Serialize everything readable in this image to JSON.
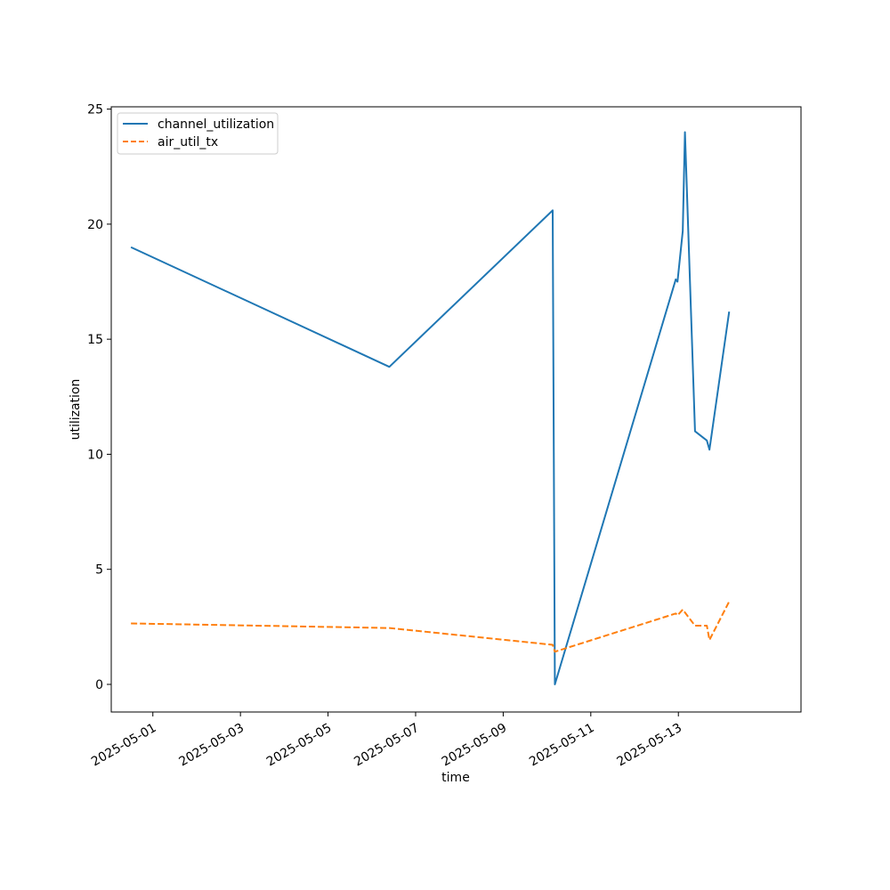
{
  "chart_data": {
    "type": "line",
    "title": "",
    "xlabel": "time",
    "ylabel": "utilization",
    "x_ticks": [
      "2025-05-01",
      "2025-05-03",
      "2025-05-05",
      "2025-05-07",
      "2025-05-09",
      "2025-05-11",
      "2025-05-13"
    ],
    "y_ticks": [
      0,
      5,
      10,
      15,
      20,
      25
    ],
    "xlim": [
      "2025-04-30T01:12",
      "2025-05-15T19:12"
    ],
    "ylim": [
      -1.2,
      25.1
    ],
    "grid": false,
    "legend_position": "upper-left",
    "series": [
      {
        "name": "channel_utilization",
        "color": "#1f77b4",
        "dash": "solid",
        "points": [
          {
            "x": "2025-04-30T12:00",
            "y": 19.0
          },
          {
            "x": "2025-05-06T09:36",
            "y": 13.8
          },
          {
            "x": "2025-05-10T03:07",
            "y": 20.6
          },
          {
            "x": "2025-05-10T04:19",
            "y": 0.0
          },
          {
            "x": "2025-05-12T22:34",
            "y": 17.6
          },
          {
            "x": "2025-05-12T23:31",
            "y": 17.5
          },
          {
            "x": "2025-05-13T02:24",
            "y": 19.7
          },
          {
            "x": "2025-05-13T03:36",
            "y": 24.0
          },
          {
            "x": "2025-05-13T09:07",
            "y": 11.0
          },
          {
            "x": "2025-05-13T15:36",
            "y": 10.6
          },
          {
            "x": "2025-05-13T17:02",
            "y": 10.2
          },
          {
            "x": "2025-05-14T03:50",
            "y": 16.2
          }
        ]
      },
      {
        "name": "air_util_tx",
        "color": "#ff7f0e",
        "dash": "dashed",
        "points": [
          {
            "x": "2025-04-30T12:00",
            "y": 2.65
          },
          {
            "x": "2025-05-06T09:36",
            "y": 2.45
          },
          {
            "x": "2025-05-10T03:07",
            "y": 1.72
          },
          {
            "x": "2025-05-10T04:19",
            "y": 1.42
          },
          {
            "x": "2025-05-12T22:34",
            "y": 3.08
          },
          {
            "x": "2025-05-12T23:31",
            "y": 3.0
          },
          {
            "x": "2025-05-13T02:24",
            "y": 3.25
          },
          {
            "x": "2025-05-13T09:07",
            "y": 2.55
          },
          {
            "x": "2025-05-13T15:36",
            "y": 2.55
          },
          {
            "x": "2025-05-13T17:02",
            "y": 1.93
          },
          {
            "x": "2025-05-14T03:50",
            "y": 3.6
          }
        ]
      }
    ]
  }
}
